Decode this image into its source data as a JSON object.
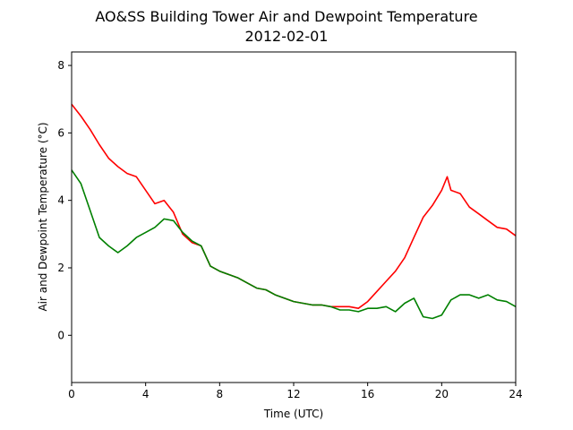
{
  "chart_data": {
    "type": "line",
    "title": "AO&SS Building Tower Air and Dewpoint Temperature",
    "subtitle": "2012-02-01",
    "xlabel": "Time (UTC)",
    "ylabel": "Air and Dewpoint Temperature (°C)",
    "xlim": [
      0,
      24
    ],
    "ylim": [
      -1.4,
      8.4
    ],
    "xticks": [
      "0",
      "4",
      "8",
      "12",
      "16",
      "20",
      "24"
    ],
    "xtick_values": [
      0,
      4,
      8,
      12,
      16,
      20,
      24
    ],
    "yticks": [
      "0",
      "2",
      "4",
      "6",
      "8"
    ],
    "ytick_values": [
      0,
      2,
      4,
      6,
      8
    ],
    "grid": false,
    "series": [
      {
        "color": "#ff0000",
        "x": [
          0,
          0.5,
          1,
          1.5,
          2,
          2.5,
          3,
          3.5,
          4,
          4.5,
          5,
          5.5,
          6,
          6.5,
          7,
          7.5,
          8,
          8.5,
          9,
          9.5,
          10,
          10.5,
          11,
          11.5,
          12,
          12.5,
          13,
          13.5,
          14,
          14.5,
          15,
          15.5,
          16,
          16.5,
          17,
          17.5,
          18,
          18.5,
          19,
          19.5,
          20,
          20.3,
          20.5,
          21,
          21.5,
          22,
          22.5,
          23,
          23.5,
          24
        ],
        "y": [
          6.85,
          6.5,
          6.1,
          5.65,
          5.25,
          5.0,
          4.8,
          4.7,
          4.3,
          3.9,
          4.0,
          3.65,
          3.0,
          2.75,
          2.65,
          2.05,
          1.9,
          1.8,
          1.7,
          1.55,
          1.4,
          1.35,
          1.2,
          1.1,
          1.0,
          0.95,
          0.9,
          0.9,
          0.85,
          0.85,
          0.85,
          0.8,
          1.0,
          1.3,
          1.6,
          1.9,
          2.3,
          2.9,
          3.5,
          3.85,
          4.3,
          4.7,
          4.3,
          4.2,
          3.8,
          3.6,
          3.4,
          3.2,
          3.15,
          2.95
        ]
      },
      {
        "color": "#008000",
        "x": [
          0,
          0.5,
          1,
          1.5,
          2,
          2.5,
          3,
          3.5,
          4,
          4.5,
          5,
          5.5,
          6,
          6.5,
          7,
          7.5,
          8,
          8.5,
          9,
          9.5,
          10,
          10.5,
          11,
          11.5,
          12,
          12.5,
          13,
          13.5,
          14,
          14.5,
          15,
          15.5,
          16,
          16.5,
          17,
          17.5,
          18,
          18.5,
          19,
          19.5,
          20,
          20.5,
          21,
          21.5,
          22,
          22.5,
          23,
          23.5,
          24
        ],
        "y": [
          4.9,
          4.5,
          3.7,
          2.9,
          2.65,
          2.45,
          2.65,
          2.9,
          3.05,
          3.2,
          3.45,
          3.4,
          3.05,
          2.8,
          2.65,
          2.05,
          1.9,
          1.8,
          1.7,
          1.55,
          1.4,
          1.35,
          1.2,
          1.1,
          1.0,
          0.95,
          0.9,
          0.9,
          0.85,
          0.75,
          0.75,
          0.7,
          0.8,
          0.8,
          0.85,
          0.7,
          0.95,
          1.1,
          0.55,
          0.5,
          0.6,
          1.05,
          1.2,
          1.2,
          1.1,
          1.2,
          1.05,
          1.0,
          0.85
        ]
      }
    ]
  }
}
